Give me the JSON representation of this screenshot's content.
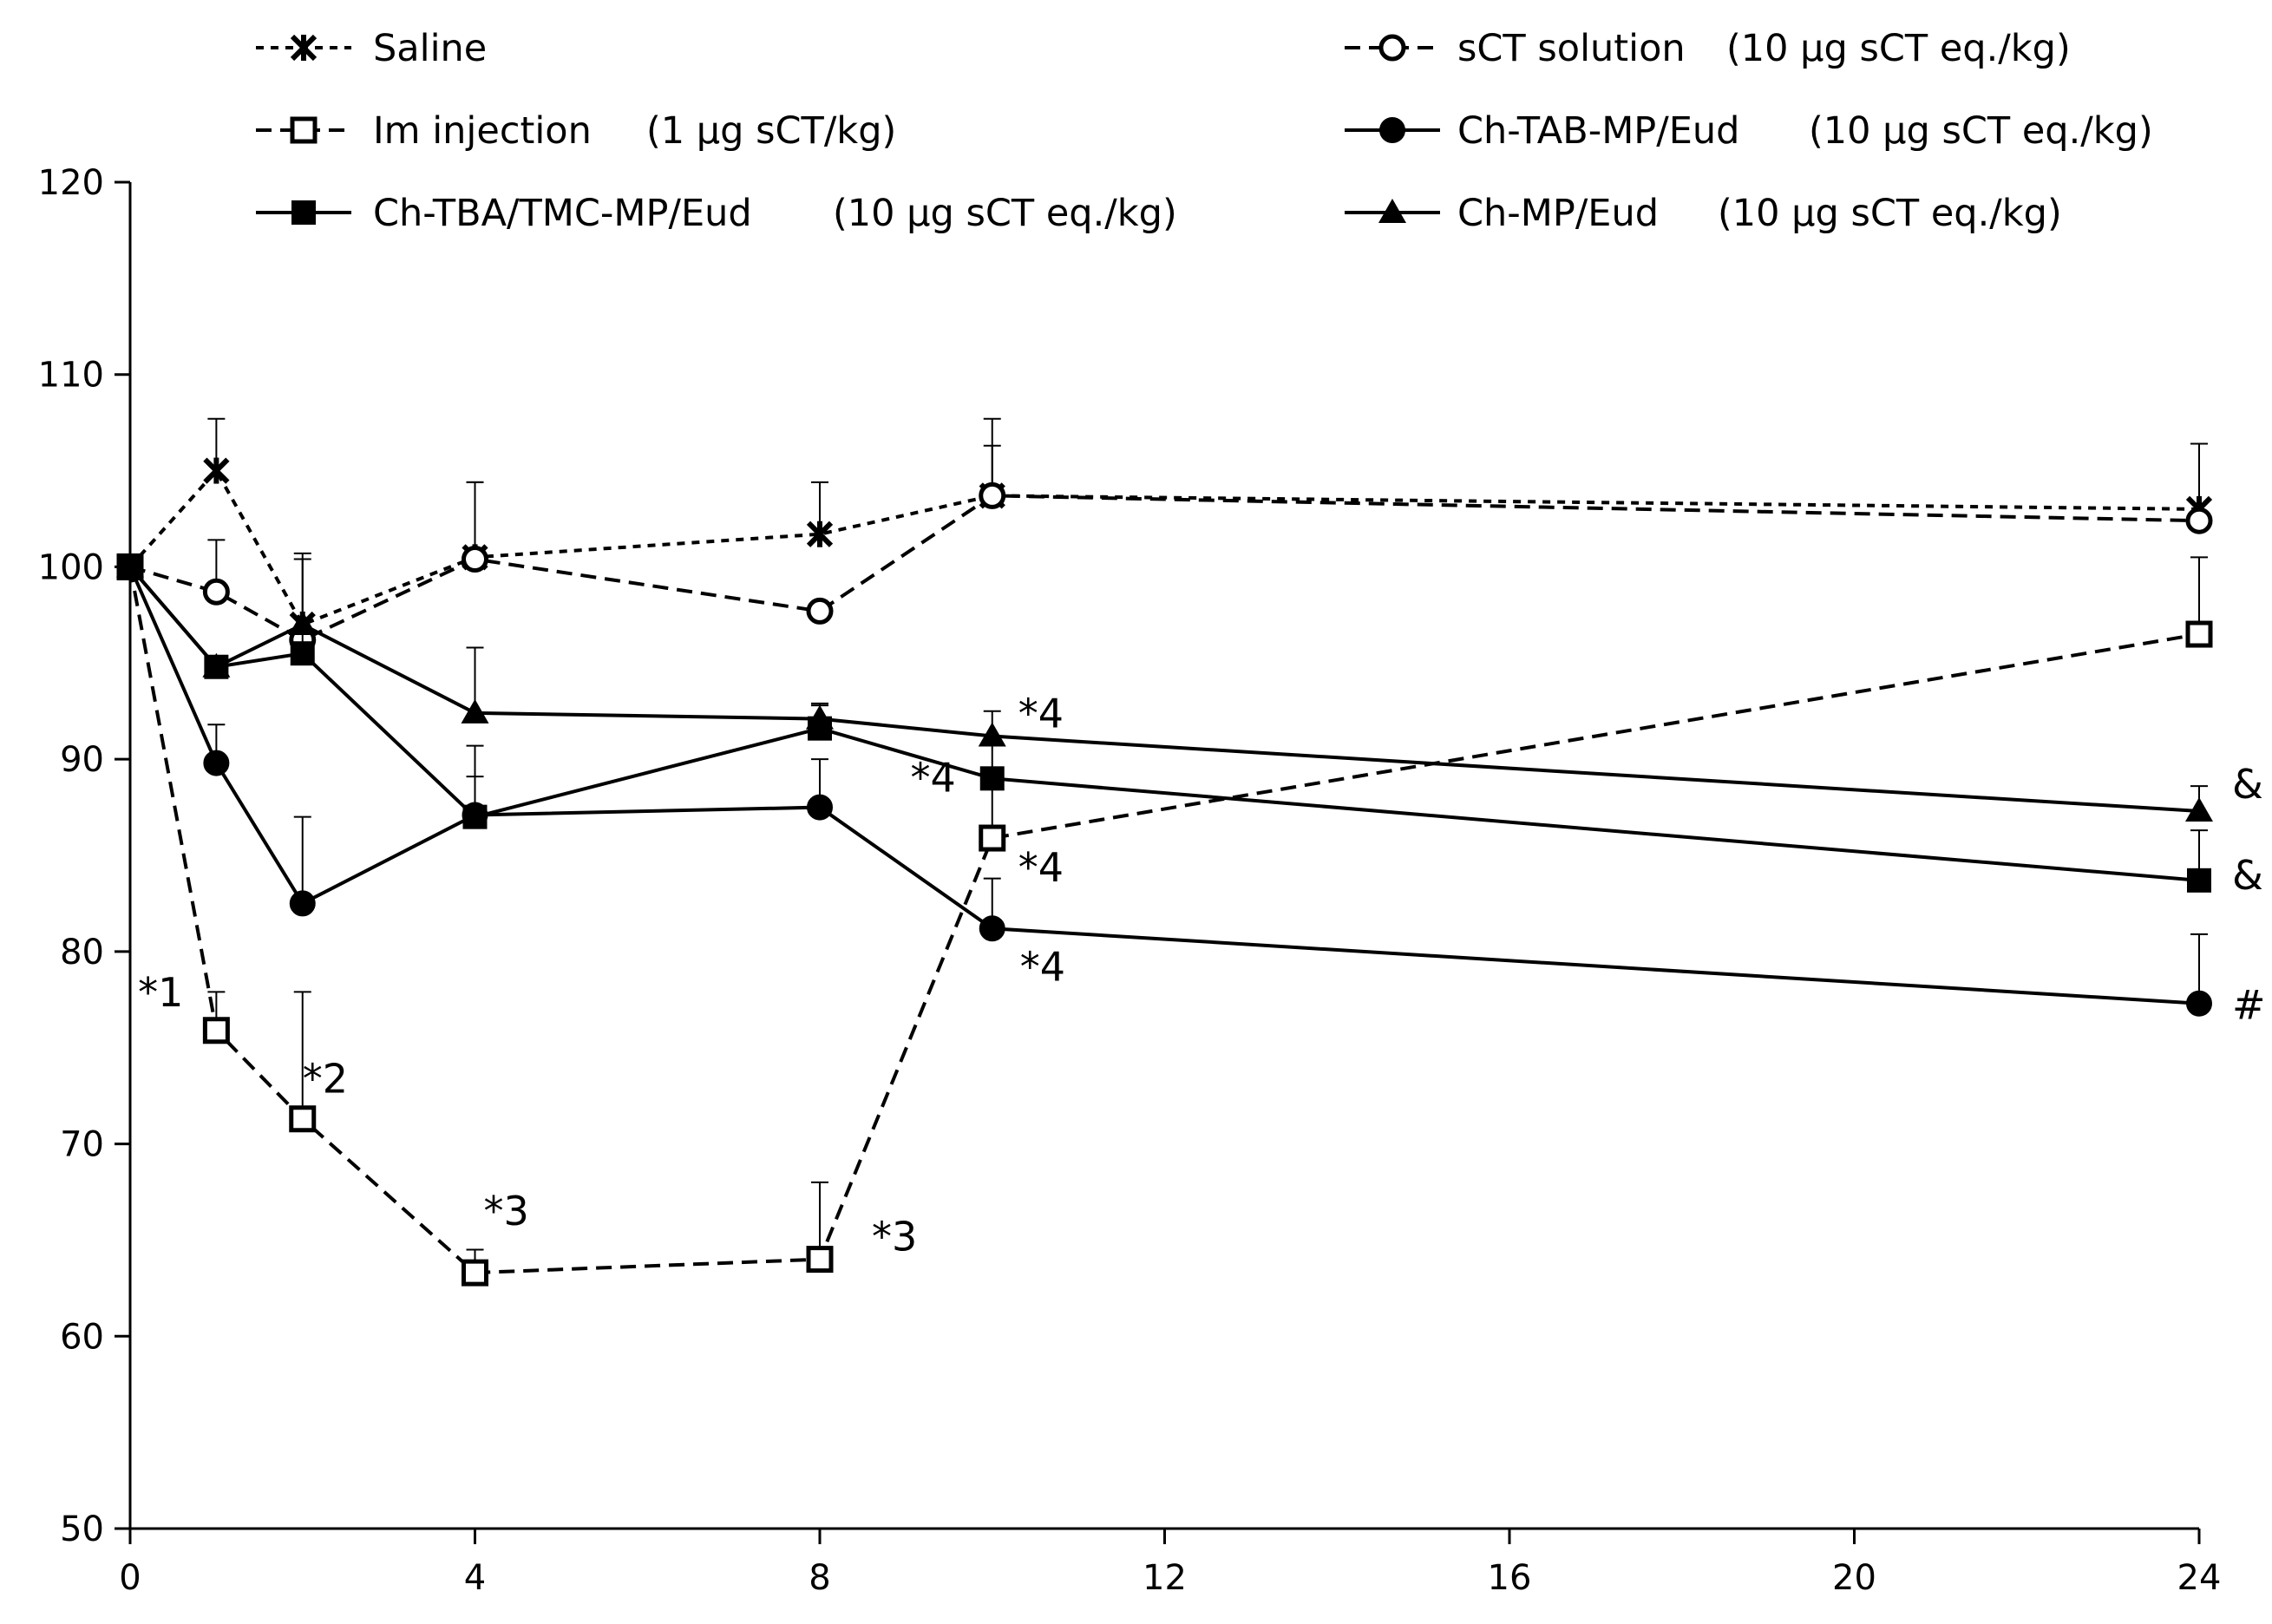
{
  "chart_data": {
    "type": "line",
    "title": "",
    "xlabel": "",
    "ylabel": "",
    "xlim": [
      0,
      24
    ],
    "ylim": [
      50,
      120
    ],
    "x_ticks": [
      "0",
      "4",
      "8",
      "12",
      "16",
      "20",
      "24"
    ],
    "x_tick_values": [
      0,
      4,
      8,
      12,
      16,
      20,
      24
    ],
    "y_ticks": [
      "50",
      "60",
      "70",
      "80",
      "90",
      "100",
      "110",
      "120"
    ],
    "y_tick_values": [
      50,
      60,
      70,
      80,
      90,
      100,
      110,
      120
    ],
    "grid": false,
    "series": [
      {
        "name": "Saline",
        "dose": "",
        "line": "dotted",
        "marker": "asterisk",
        "x": [
          0,
          1,
          2,
          4,
          8,
          10,
          24
        ],
        "y": [
          100,
          105,
          97,
          100.5,
          101.7,
          103.7,
          103
        ],
        "err": [
          0,
          2.7,
          3.4,
          3.9,
          2.7,
          2.6,
          3.4
        ]
      },
      {
        "name": "sCT solution",
        "dose": "(10 µg sCT eq./kg)",
        "line": "dashed",
        "marker": "open-circle",
        "x": [
          0,
          1,
          2,
          4,
          8,
          10,
          24
        ],
        "y": [
          100,
          98.7,
          96.2,
          100.4,
          97.7,
          103.7,
          102.4
        ],
        "err": [
          0,
          2.7,
          0,
          4,
          0,
          4,
          4
        ]
      },
      {
        "name": "Im injection",
        "dose": "(1 µg sCT/kg)",
        "line": "dashed",
        "marker": "open-square",
        "x": [
          0,
          1,
          2,
          4,
          8,
          10,
          24
        ],
        "y": [
          100,
          75.9,
          71.3,
          63.3,
          64,
          85.9,
          96.5
        ],
        "err": [
          0,
          2,
          6.6,
          1.2,
          4,
          2.6,
          4
        ]
      },
      {
        "name": "Ch-TAB-MP/Eud",
        "dose": "(10 µg sCT eq./kg)",
        "line": "solid",
        "marker": "filled-circle",
        "x": [
          0,
          1,
          2,
          4,
          8,
          10,
          24
        ],
        "y": [
          100,
          89.8,
          82.5,
          87.1,
          87.5,
          81.2,
          77.3
        ],
        "err": [
          0,
          2,
          4.5,
          2,
          2.5,
          2.6,
          3.6
        ]
      },
      {
        "name": "Ch-TBA/TMC-MP/Eud",
        "dose": "(10 µg sCT eq./kg)",
        "line": "solid",
        "marker": "filled-square",
        "x": [
          0,
          1,
          2,
          4,
          8,
          10,
          24
        ],
        "y": [
          100,
          94.8,
          95.5,
          87,
          91.6,
          89,
          83.7
        ],
        "err": [
          0,
          0,
          5.2,
          3.7,
          1.3,
          2,
          2.6
        ]
      },
      {
        "name": "Ch-MP/Eud",
        "dose": "(10 µg sCT eq./kg)",
        "line": "solid",
        "marker": "filled-triangle",
        "x": [
          0,
          1,
          2,
          4,
          8,
          10,
          24
        ],
        "y": [
          100,
          94.8,
          97,
          92.4,
          92.1,
          91.2,
          87.3
        ],
        "err": [
          0,
          0,
          0,
          3.4,
          0.7,
          1.3,
          1.3
        ]
      }
    ],
    "annotations": [
      {
        "text": "*1",
        "x": 1,
        "y": 75.9,
        "placement": "above-left"
      },
      {
        "text": "*2",
        "x": 2,
        "y": 71.3,
        "placement": "above-right"
      },
      {
        "text": "*3",
        "x": 4,
        "y": 63.3,
        "placement": "above-right"
      },
      {
        "text": "*3",
        "x": 8,
        "y": 64,
        "placement": "right"
      },
      {
        "text": "*4",
        "x": 10,
        "y": 91.2,
        "placement": "right"
      },
      {
        "text": "*4",
        "x": 10,
        "y": 89,
        "placement": "left"
      },
      {
        "text": "*4",
        "x": 10,
        "y": 85.9,
        "placement": "below-right"
      },
      {
        "text": "*4",
        "x": 10,
        "y": 81.2,
        "placement": "below-right"
      },
      {
        "text": "&",
        "x": 24,
        "y": 87.3,
        "placement": "right"
      },
      {
        "text": "&",
        "x": 24,
        "y": 83.7,
        "placement": "right"
      },
      {
        "text": "#",
        "x": 24,
        "y": 77.3,
        "placement": "right"
      }
    ],
    "legend": {
      "position": "top",
      "entries": [
        {
          "label": "Saline",
          "dose": "",
          "series": 0
        },
        {
          "label": "sCT solution",
          "dose": "(10 µg sCT eq./kg)",
          "series": 1
        },
        {
          "label": "Im injection",
          "dose": "(1 µg sCT/kg)",
          "series": 2
        },
        {
          "label": "Ch-TAB-MP/Eud",
          "dose": "(10 µg sCT eq./kg)",
          "series": 3
        },
        {
          "label": "Ch-TBA/TMC-MP/Eud",
          "dose": "(10 µg sCT eq./kg)",
          "series": 4
        },
        {
          "label": "Ch-MP/Eud",
          "dose": "(10 µg sCT eq./kg)",
          "series": 5
        }
      ]
    }
  }
}
